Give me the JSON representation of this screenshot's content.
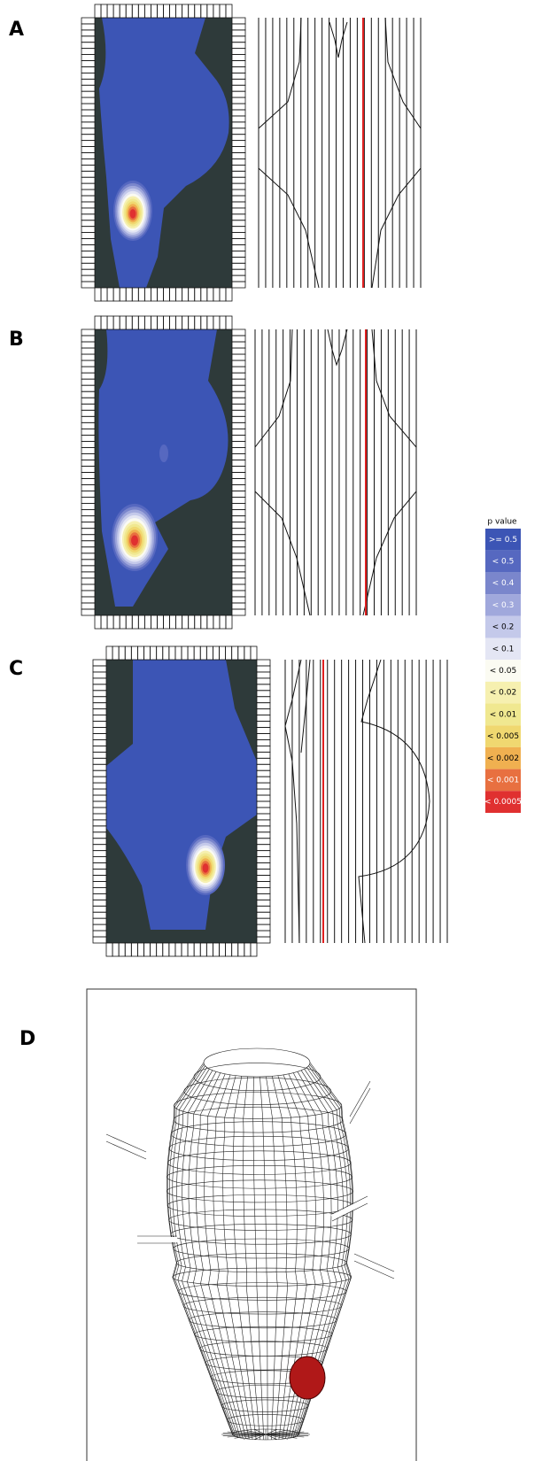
{
  "panels": [
    {
      "label": "A"
    },
    {
      "label": "B"
    },
    {
      "label": "C"
    },
    {
      "label": "D"
    }
  ],
  "legend": {
    "title": "p value",
    "items": [
      {
        "label": ">= 0.5",
        "color": "#3c55b5"
      },
      {
        "label": "< 0.5",
        "color": "#5668c0"
      },
      {
        "label": "< 0.4",
        "color": "#7a86cc"
      },
      {
        "label": "< 0.3",
        "color": "#a0a8dc"
      },
      {
        "label": "< 0.2",
        "color": "#c4c9ea"
      },
      {
        "label": "< 0.1",
        "color": "#e4e6f4"
      },
      {
        "label": "< 0.05",
        "color": "#fbfbf2"
      },
      {
        "label": "< 0.02",
        "color": "#f6f0b0"
      },
      {
        "label": "< 0.01",
        "color": "#f0e890"
      },
      {
        "label": "< 0.005",
        "color": "#f0d870"
      },
      {
        "label": "< 0.002",
        "color": "#f0b050"
      },
      {
        "label": "< 0.001",
        "color": "#e87040"
      },
      {
        "label": "< 0.0005",
        "color": "#e03030"
      }
    ]
  }
}
